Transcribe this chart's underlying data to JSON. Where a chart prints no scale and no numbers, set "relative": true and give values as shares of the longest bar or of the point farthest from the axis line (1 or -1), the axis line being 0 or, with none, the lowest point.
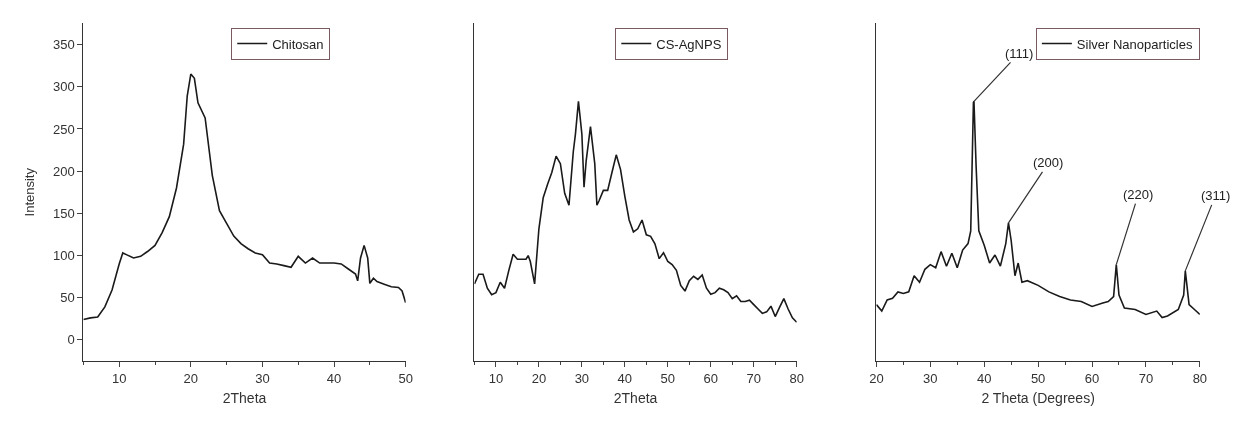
{
  "chart_data": [
    {
      "type": "line",
      "xlabel": "2Theta",
      "ylabel": "Intensity",
      "xlim": [
        5,
        50
      ],
      "xticks": [
        10,
        20,
        30,
        40,
        50
      ],
      "ylim": [
        -25,
        375
      ],
      "yticks": [
        0,
        50,
        100,
        150,
        200,
        250,
        300,
        350
      ],
      "legend": "top",
      "marker": "none",
      "line_style": "solid",
      "x": [
        5,
        6,
        7,
        8,
        9,
        10,
        10.5,
        11,
        12,
        13,
        14,
        15,
        16,
        17,
        18,
        19,
        19.5,
        20,
        20.5,
        21,
        22,
        23,
        24,
        25,
        26,
        27,
        28,
        29,
        30,
        31,
        32,
        33,
        34,
        35,
        36,
        37,
        38,
        40,
        41,
        42,
        43,
        43.3,
        43.7,
        44.2,
        44.7,
        45,
        45.5,
        46,
        47,
        48,
        49,
        49.5,
        50
      ],
      "series": [
        {
          "name": "Chitosan",
          "color": "#1a1a1a",
          "values": [
            24,
            26,
            27,
            39,
            59,
            90,
            103,
            101,
            97,
            99,
            105,
            112,
            127,
            146,
            180,
            232,
            289,
            315,
            310,
            281,
            263,
            195,
            153,
            138,
            123,
            114,
            108,
            103,
            101,
            91,
            90,
            88,
            86,
            99,
            91,
            97,
            91,
            91,
            90,
            84,
            78,
            70,
            97,
            112,
            97,
            67,
            73,
            69,
            66,
            63,
            62,
            58,
            44
          ]
        }
      ]
    },
    {
      "type": "line",
      "relative": true,
      "xlabel": "2Theta",
      "xlim": [
        5,
        80
      ],
      "xticks": [
        10,
        20,
        30,
        40,
        50,
        60,
        70,
        80
      ],
      "legend": "top",
      "marker": "none",
      "line_style": "solid",
      "x": [
        5,
        6,
        7,
        8,
        9,
        10,
        11,
        12,
        13,
        14,
        15,
        17,
        17.5,
        18,
        19,
        20,
        21,
        22,
        23,
        24,
        25,
        26,
        27,
        28,
        28.5,
        29.2,
        29.5,
        30,
        30.5,
        31,
        32,
        33,
        33.5,
        34,
        35,
        36,
        37,
        38,
        39,
        40,
        41,
        42,
        43,
        44,
        45,
        46,
        47,
        48,
        49,
        50,
        51,
        52,
        53,
        54,
        55,
        56,
        57,
        58,
        59,
        60,
        61,
        62,
        63,
        64,
        65,
        66,
        67,
        68,
        69,
        70,
        71,
        72,
        73,
        74,
        75,
        76,
        77,
        78,
        79,
        80
      ],
      "series": [
        {
          "name": "CS-AgNPS",
          "color": "#1a1a1a",
          "values": [
            0.297,
            0.334,
            0.334,
            0.28,
            0.255,
            0.263,
            0.303,
            0.28,
            0.349,
            0.411,
            0.392,
            0.392,
            0.406,
            0.383,
            0.297,
            0.509,
            0.629,
            0.68,
            0.726,
            0.789,
            0.76,
            0.646,
            0.6,
            0.806,
            0.874,
            1,
            0.954,
            0.874,
            0.669,
            0.771,
            0.903,
            0.76,
            0.6,
            0.617,
            0.657,
            0.657,
            0.726,
            0.794,
            0.737,
            0.634,
            0.543,
            0.497,
            0.509,
            0.543,
            0.486,
            0.48,
            0.451,
            0.394,
            0.417,
            0.383,
            0.371,
            0.349,
            0.291,
            0.269,
            0.309,
            0.326,
            0.314,
            0.331,
            0.28,
            0.257,
            0.263,
            0.28,
            0.274,
            0.263,
            0.24,
            0.251,
            0.229,
            0.229,
            0.234,
            0.217,
            0.2,
            0.183,
            0.189,
            0.211,
            0.171,
            0.206,
            0.24,
            0.2,
            0.166,
            0.149
          ]
        }
      ]
    },
    {
      "type": "line",
      "relative": true,
      "xlabel": "2 Theta (Degrees)",
      "xlim": [
        20,
        80
      ],
      "xticks": [
        20,
        30,
        40,
        50,
        60,
        70,
        80
      ],
      "legend": "top right",
      "marker": "none",
      "line_style": "solid",
      "x": [
        20,
        21,
        22,
        23,
        24,
        25,
        26,
        27,
        28,
        29,
        30,
        31,
        32,
        33,
        34,
        35,
        36,
        37,
        37.5,
        38,
        38.1,
        38.5,
        39,
        40,
        41,
        42,
        43,
        44,
        44.5,
        45,
        45.7,
        46.3,
        47,
        48,
        50,
        52,
        54,
        56,
        58,
        60,
        62,
        63,
        64,
        64.5,
        65,
        66,
        68,
        70,
        72,
        73,
        74,
        76,
        77,
        77.3,
        78,
        79,
        80
      ],
      "series": [
        {
          "name": "Silver Nanoparticles",
          "color": "#1a1a1a",
          "values": [
            0.217,
            0.192,
            0.235,
            0.241,
            0.266,
            0.26,
            0.266,
            0.328,
            0.303,
            0.353,
            0.371,
            0.359,
            0.421,
            0.365,
            0.415,
            0.359,
            0.427,
            0.452,
            0.501,
            0.996,
            1,
            0.749,
            0.501,
            0.446,
            0.377,
            0.408,
            0.365,
            0.452,
            0.532,
            0.464,
            0.328,
            0.377,
            0.303,
            0.309,
            0.291,
            0.266,
            0.248,
            0.235,
            0.229,
            0.21,
            0.223,
            0.229,
            0.248,
            0.371,
            0.254,
            0.204,
            0.198,
            0.179,
            0.192,
            0.167,
            0.173,
            0.198,
            0.254,
            0.347,
            0.217,
            0.198,
            0.179
          ]
        }
      ],
      "annotations": [
        {
          "text": "(111)",
          "x": 38.1,
          "y": 1
        },
        {
          "text": "(200)",
          "x": 44.5,
          "y": 0.532
        },
        {
          "text": "(220)",
          "x": 64.5,
          "y": 0.371
        },
        {
          "text": "(311)",
          "x": 77.3,
          "y": 0.347
        }
      ]
    }
  ]
}
